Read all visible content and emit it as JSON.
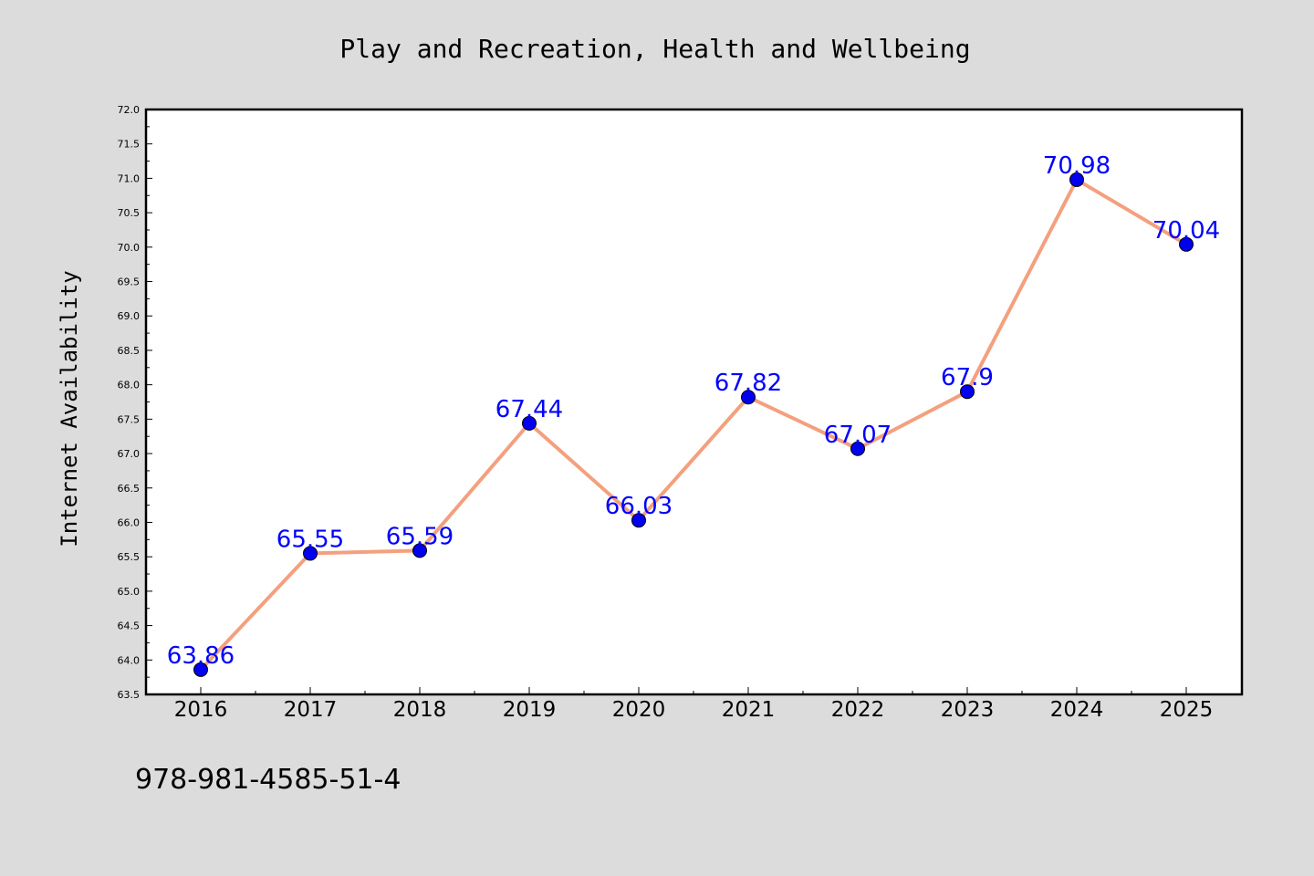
{
  "chart_data": {
    "type": "line",
    "title": "Play and Recreation, Health and Wellbeing",
    "xlabel": "",
    "ylabel": "Internet Availability",
    "categories": [
      "2016",
      "2017",
      "2018",
      "2019",
      "2020",
      "2021",
      "2022",
      "2023",
      "2024",
      "2025"
    ],
    "series": [
      {
        "values": [
          63.86,
          65.55,
          65.59,
          67.44,
          66.03,
          67.82,
          67.07,
          67.9,
          70.98,
          70.04
        ],
        "labels": [
          "63.86",
          "65.55",
          "65.59",
          "67.44",
          "66.03",
          "67.82",
          "67.07",
          "67.9",
          "70.98",
          "70.04"
        ]
      }
    ],
    "ylim": [
      63.5,
      72.0
    ],
    "yticks": [
      "63.5",
      "64.0",
      "64.5",
      "65.0",
      "65.5",
      "66.0",
      "66.5",
      "67.0",
      "67.5",
      "68.0",
      "68.5",
      "69.0",
      "69.5",
      "70.0",
      "70.5",
      "71.0",
      "71.5",
      "72.0"
    ],
    "grid": false,
    "legend": "none"
  },
  "colors": {
    "background": "#dcdcdc",
    "plot_area": "#ffffff",
    "line": "#f4a07e",
    "marker": "#0000ee",
    "data_label": "#0000ff"
  },
  "footer": {
    "isbn": "978-981-4585-51-4"
  }
}
